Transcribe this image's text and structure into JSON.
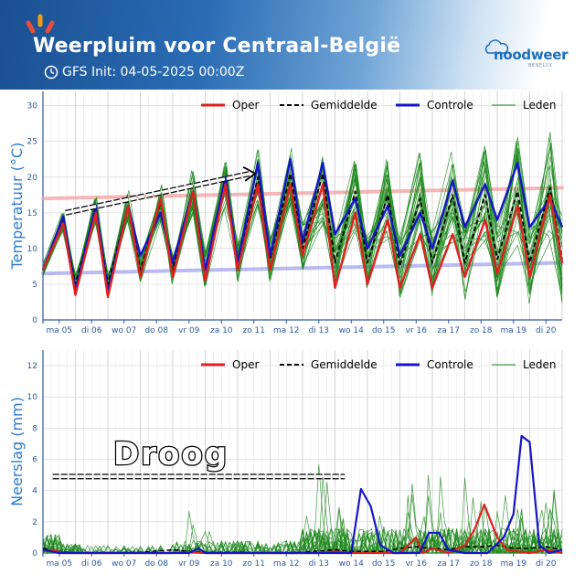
{
  "header": {
    "title": "Weerpluim voor  Centraal-België",
    "subtitle": "GFS Init: 04-05-2025 00:00Z",
    "logo_text": "noodweer",
    "logo_sub": "BENELUX",
    "clock_icon": "clock-icon",
    "accent_colors": [
      "#e74c3c",
      "#f39c12",
      "#e74c3c"
    ]
  },
  "legend": [
    "Oper",
    "Gemiddelde",
    "Controle",
    "Leden"
  ],
  "colors": {
    "oper": "#e02020",
    "mean": "#000000",
    "control": "#1515c8",
    "members": "#1f8a1f",
    "axis": "#2b5aa0",
    "label": "#2b7bd0",
    "climate_high": "#f4a5a5",
    "climate_low": "#a9a9f0"
  },
  "annotation": "Droog",
  "chart_data": [
    {
      "type": "line",
      "ylabel": "Temperatuur (°C)",
      "ylim": [
        0,
        32
      ],
      "yticks": [
        0,
        5,
        10,
        15,
        20,
        25,
        30
      ],
      "xlim": [
        0,
        16
      ],
      "x_tick_positions": [
        0.5,
        1.5,
        2.5,
        3.5,
        4.5,
        5.5,
        6.5,
        7.5,
        8.5,
        9.5,
        10.5,
        11.5,
        12.5,
        13.5,
        14.5,
        15.5
      ],
      "x_ticks": [
        "ma 05",
        "di 06",
        "wo 07",
        "do 08",
        "vr 09",
        "za 10",
        "zo 11",
        "ma 12",
        "di 13",
        "wo 14",
        "do 15",
        "vr 16",
        "za 17",
        "zo 18",
        "ma 19",
        "di 20"
      ],
      "grid": true,
      "legend_position": "top",
      "daily": {
        "oper_max": [
          13.5,
          15,
          16,
          17,
          18,
          19,
          19,
          19,
          15,
          14,
          12,
          12,
          14,
          16,
          17.5,
          18
        ],
        "oper_min": [
          3.5,
          3.2,
          6,
          6,
          5.5,
          7,
          7,
          9,
          4.5,
          5,
          4.5,
          4.5,
          6,
          6.5,
          6,
          7
        ],
        "mean_max": [
          14,
          15.5,
          16,
          16.5,
          18,
          19,
          20,
          20.5,
          18,
          17.5,
          17,
          17.5,
          17.5,
          18,
          18,
          18.5
        ],
        "mean_min": [
          5,
          5,
          7,
          7,
          7,
          8,
          8.5,
          10,
          8,
          8,
          7.5,
          8,
          8,
          8.5,
          8,
          8.5
        ],
        "control_max": [
          14.5,
          16,
          16,
          15,
          18,
          20,
          22,
          22.5,
          17,
          16,
          15,
          19.5,
          19,
          22,
          17,
          19.5
        ],
        "control_min": [
          4,
          4,
          9,
          8,
          7,
          8,
          9,
          11,
          12,
          10,
          9,
          10,
          13,
          14,
          13,
          13
        ]
      },
      "climate_high": [
        17,
        18.5
      ],
      "climate_low": [
        6.5,
        8
      ],
      "trend_arrow_y": [
        15,
        20.5
      ],
      "x": [
        0,
        0.625,
        1,
        1.625,
        2,
        2.625,
        3,
        3.625,
        4,
        4.625,
        5,
        5.625,
        6,
        6.625,
        7,
        7.625,
        8,
        8.625,
        9,
        9.625,
        10,
        10.625,
        11,
        11.625,
        12,
        12.625,
        13,
        13.625,
        14,
        14.625,
        15,
        15.625,
        16
      ],
      "series": [
        {
          "name": "Oper",
          "values": [
            7,
            13.5,
            3.5,
            15,
            3.2,
            16,
            6,
            17,
            6,
            18,
            5.5,
            19,
            7,
            19,
            7,
            19,
            9,
            19,
            4.5,
            15,
            5,
            14,
            4.5,
            12,
            4.5,
            12,
            6,
            14,
            6.5,
            16,
            6,
            17.5,
            8
          ]
        },
        {
          "name": "Gemiddelde",
          "values": [
            7,
            14,
            5,
            15.5,
            5,
            16,
            7,
            16.5,
            7,
            18,
            7,
            19,
            8,
            20,
            8.5,
            20.5,
            10,
            20.5,
            8,
            18,
            8,
            17.5,
            7.5,
            17,
            8,
            17.5,
            8,
            17.5,
            8.5,
            18,
            8,
            18.5,
            8.5
          ]
        },
        {
          "name": "Controle",
          "values": [
            7,
            14.5,
            4,
            16,
            4,
            16,
            9,
            15,
            8,
            18,
            7,
            20,
            8,
            22,
            9,
            22.5,
            11,
            22,
            12,
            17,
            10,
            16,
            9,
            15,
            10,
            19.5,
            13,
            19,
            14,
            22,
            13,
            17,
            13
          ]
        }
      ]
    },
    {
      "type": "line",
      "ylabel": "Neerslag (mm)",
      "ylim": [
        0,
        13
      ],
      "yticks": [
        0,
        2,
        4,
        6,
        8,
        10,
        12
      ],
      "xlim": [
        0,
        16
      ],
      "x_tick_positions": [
        0.5,
        1.5,
        2.5,
        3.5,
        4.5,
        5.5,
        6.5,
        7.5,
        8.5,
        9.5,
        10.5,
        11.5,
        12.5,
        13.5,
        14.5,
        15.5
      ],
      "x_ticks": [
        "ma 05",
        "di 06",
        "wo 07",
        "do 08",
        "vr 09",
        "za 10",
        "zo 11",
        "ma 12",
        "di 13",
        "wo 14",
        "do 15",
        "vr 16",
        "za 17",
        "zo 18",
        "ma 19",
        "di 20"
      ],
      "grid": true,
      "legend_position": "top",
      "dry_period": [
        0.3,
        9.3
      ],
      "dry_level": 4.9,
      "series": [
        {
          "name": "Oper",
          "points": [
            [
              0,
              0.1
            ],
            [
              0.3,
              0.2
            ],
            [
              0.6,
              0
            ],
            [
              4,
              0
            ],
            [
              4.5,
              0.05
            ],
            [
              5,
              0
            ],
            [
              8.5,
              0
            ],
            [
              9,
              0.1
            ],
            [
              9.5,
              0
            ],
            [
              10,
              0
            ],
            [
              11,
              0
            ],
            [
              11.5,
              1
            ],
            [
              11.7,
              0
            ],
            [
              12,
              0.3
            ],
            [
              12.5,
              0
            ],
            [
              13,
              0.5
            ],
            [
              13.3,
              1.5
            ],
            [
              13.6,
              3.1
            ],
            [
              14,
              1
            ],
            [
              14.3,
              0.2
            ],
            [
              15,
              0
            ],
            [
              15.5,
              0.2
            ],
            [
              16,
              0
            ]
          ]
        },
        {
          "name": "Gemiddelde",
          "points": [
            [
              0,
              0.3
            ],
            [
              0.5,
              0.1
            ],
            [
              1,
              0
            ],
            [
              3,
              0.05
            ],
            [
              4,
              0.2
            ],
            [
              4.5,
              0.1
            ],
            [
              5,
              0.05
            ],
            [
              6,
              0.05
            ],
            [
              7,
              0
            ],
            [
              8,
              0.05
            ],
            [
              9,
              0.2
            ],
            [
              9.5,
              0.1
            ],
            [
              10,
              0.1
            ],
            [
              10.5,
              0.1
            ],
            [
              11,
              0.3
            ],
            [
              11.5,
              0.4
            ],
            [
              12,
              0.3
            ],
            [
              12.5,
              0.2
            ],
            [
              13,
              0.4
            ],
            [
              13.5,
              0.4
            ],
            [
              14,
              0.5
            ],
            [
              14.5,
              0.3
            ],
            [
              15,
              0.3
            ],
            [
              15.5,
              0.4
            ],
            [
              16,
              0.2
            ]
          ]
        },
        {
          "name": "Controle",
          "points": [
            [
              0,
              0.2
            ],
            [
              0.5,
              0
            ],
            [
              4.5,
              0
            ],
            [
              4.8,
              0.3
            ],
            [
              5,
              0
            ],
            [
              9.5,
              0
            ],
            [
              9.8,
              4.1
            ],
            [
              10.1,
              3.0
            ],
            [
              10.4,
              0.5
            ],
            [
              10.8,
              0
            ],
            [
              11.6,
              0
            ],
            [
              11.9,
              1.3
            ],
            [
              12.2,
              1.3
            ],
            [
              12.5,
              0.2
            ],
            [
              13,
              0
            ],
            [
              13.7,
              0
            ],
            [
              14.2,
              1
            ],
            [
              14.5,
              2.5
            ],
            [
              14.75,
              7.5
            ],
            [
              15,
              7.1
            ],
            [
              15.3,
              0.5
            ],
            [
              15.6,
              0
            ],
            [
              16,
              0.2
            ]
          ]
        }
      ]
    }
  ]
}
